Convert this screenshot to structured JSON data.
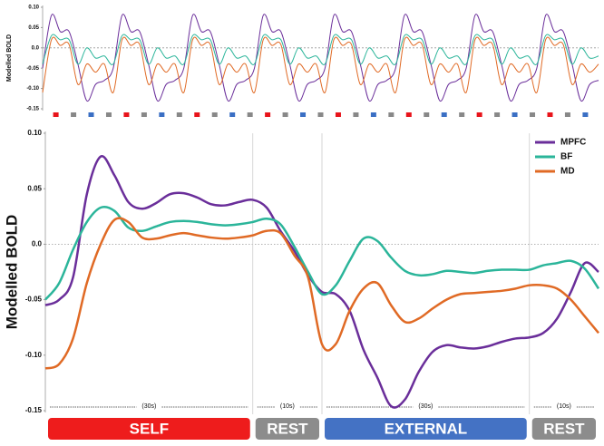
{
  "chart_data": [
    {
      "type": "line",
      "ylabel": "Modelled BOLD",
      "ylim": [
        -0.15,
        0.1
      ],
      "yticks": [
        -0.15,
        {
          "value": -0.1,
          "label": "-0.10"
        },
        -0.05,
        {
          "value": 0,
          "label": "0.0"
        },
        0.05,
        {
          "value": 0.1,
          "label": "0.10"
        }
      ],
      "xlim": [
        0,
        630
      ],
      "x": [
        0,
        10,
        20,
        30,
        40,
        50,
        60,
        70,
        80,
        90,
        100,
        110,
        120,
        130,
        140,
        150,
        160,
        170,
        180,
        190,
        200,
        210,
        220,
        230,
        240,
        250,
        260,
        270,
        280,
        290,
        300,
        310,
        320,
        330,
        340,
        350,
        360,
        370,
        380,
        390,
        400,
        410,
        420,
        430,
        440,
        450,
        460,
        470,
        480,
        490,
        500,
        510,
        520,
        530,
        540,
        550,
        560,
        570,
        580,
        590,
        600,
        610,
        620,
        630
      ],
      "series": [
        {
          "color": "#6a2e9a",
          "values": [
            -0.05,
            0.08,
            0.04,
            0.04,
            -0.04,
            -0.13,
            -0.09,
            -0.08,
            -0.05,
            0.08,
            0.04,
            0.04,
            -0.04,
            -0.13,
            -0.09,
            -0.08,
            -0.05,
            0.08,
            0.04,
            0.04,
            -0.04,
            -0.13,
            -0.09,
            -0.08,
            -0.05,
            0.08,
            0.04,
            0.04,
            -0.04,
            -0.13,
            -0.09,
            -0.08,
            -0.05,
            0.08,
            0.04,
            0.04,
            -0.04,
            -0.13,
            -0.09,
            -0.08,
            -0.05,
            0.08,
            0.04,
            0.04,
            -0.04,
            -0.13,
            -0.09,
            -0.08,
            -0.05,
            0.08,
            0.04,
            0.04,
            -0.04,
            -0.13,
            -0.09,
            -0.08,
            -0.05,
            0.08,
            0.04,
            0.04,
            -0.04,
            -0.13,
            -0.09,
            -0.08
          ]
        },
        {
          "color": "#2bb59a",
          "values": [
            -0.04,
            0.03,
            0.02,
            0.02,
            -0.04,
            0,
            -0.025,
            -0.02,
            -0.04,
            0.03,
            0.02,
            0.02,
            -0.04,
            0,
            -0.025,
            -0.02,
            -0.04,
            0.03,
            0.02,
            0.02,
            -0.04,
            0,
            -0.025,
            -0.02,
            -0.04,
            0.03,
            0.02,
            0.02,
            -0.04,
            0,
            -0.025,
            -0.02,
            -0.04,
            0.03,
            0.02,
            0.02,
            -0.04,
            0,
            -0.025,
            -0.02,
            -0.04,
            0.03,
            0.02,
            0.02,
            -0.04,
            0,
            -0.025,
            -0.02,
            -0.04,
            0.03,
            0.02,
            0.02,
            -0.04,
            0,
            -0.025,
            -0.02,
            -0.04,
            0.03,
            0.02,
            0.02,
            -0.04,
            0,
            -0.025,
            -0.02
          ]
        },
        {
          "color": "#e06a25",
          "values": [
            -0.11,
            0.02,
            0.006,
            0.008,
            -0.09,
            -0.04,
            -0.06,
            -0.04,
            -0.11,
            0.02,
            0.006,
            0.008,
            -0.09,
            -0.04,
            -0.06,
            -0.04,
            -0.11,
            0.02,
            0.006,
            0.008,
            -0.09,
            -0.04,
            -0.06,
            -0.04,
            -0.11,
            0.02,
            0.006,
            0.008,
            -0.09,
            -0.04,
            -0.06,
            -0.04,
            -0.11,
            0.02,
            0.006,
            0.008,
            -0.09,
            -0.04,
            -0.06,
            -0.04,
            -0.11,
            0.02,
            0.006,
            0.008,
            -0.09,
            -0.04,
            -0.06,
            -0.04,
            -0.11,
            0.02,
            0.006,
            0.008,
            -0.09,
            -0.04,
            -0.06,
            -0.04,
            -0.11,
            0.02,
            0.006,
            0.008,
            -0.09,
            -0.04,
            -0.06,
            -0.04
          ]
        }
      ],
      "markers": [
        "#e8141b",
        "#888888",
        "#3a6fc4",
        "#888888",
        "#e8141b",
        "#888888",
        "#3a6fc4",
        "#888888",
        "#e8141b",
        "#888888",
        "#3a6fc4",
        "#888888",
        "#e8141b",
        "#888888",
        "#3a6fc4",
        "#888888",
        "#e8141b",
        "#888888",
        "#3a6fc4",
        "#888888",
        "#e8141b",
        "#888888",
        "#3a6fc4",
        "#888888",
        "#e8141b",
        "#888888",
        "#3a6fc4",
        "#888888",
        "#e8141b",
        "#888888",
        "#3a6fc4"
      ]
    },
    {
      "type": "line",
      "ylabel": "Modelled BOLD",
      "ylim": [
        -0.15,
        0.1
      ],
      "yticks": [
        -0.15,
        {
          "value": -0.1,
          "label": "-0.10"
        },
        -0.05,
        {
          "value": 0,
          "label": "0.0"
        },
        0.05,
        {
          "value": 0.1,
          "label": "0.10"
        }
      ],
      "xlim": [
        0,
        80
      ],
      "x": [
        0,
        2,
        4,
        6,
        8,
        10,
        12,
        14,
        16,
        18,
        20,
        22,
        24,
        26,
        28,
        30,
        32,
        34,
        36,
        38,
        40,
        42,
        44,
        46,
        48,
        50,
        52,
        54,
        56,
        58,
        60,
        62,
        64,
        66,
        68,
        70,
        72,
        74,
        76,
        78,
        80
      ],
      "series": [
        {
          "name": "MPFC",
          "color": "#6a2e9a",
          "values": [
            -0.055,
            -0.05,
            -0.03,
            0.045,
            0.079,
            0.062,
            0.038,
            0.032,
            0.037,
            0.045,
            0.046,
            0.042,
            0.036,
            0.035,
            0.038,
            0.04,
            0.033,
            0.012,
            -0.006,
            -0.028,
            -0.043,
            -0.045,
            -0.06,
            -0.095,
            -0.12,
            -0.146,
            -0.14,
            -0.115,
            -0.097,
            -0.091,
            -0.093,
            -0.094,
            -0.092,
            -0.088,
            -0.085,
            -0.084,
            -0.08,
            -0.067,
            -0.043,
            -0.017,
            -0.025
          ]
        },
        {
          "name": "BF",
          "color": "#2bb59a",
          "values": [
            -0.05,
            -0.035,
            -0.005,
            0.02,
            0.033,
            0.03,
            0.015,
            0.012,
            0.016,
            0.02,
            0.021,
            0.02,
            0.018,
            0.017,
            0.018,
            0.02,
            0.023,
            0.018,
            -0.002,
            -0.025,
            -0.045,
            -0.037,
            -0.015,
            0.005,
            0.003,
            -0.012,
            -0.024,
            -0.028,
            -0.027,
            -0.024,
            -0.025,
            -0.026,
            -0.024,
            -0.023,
            -0.023,
            -0.023,
            -0.019,
            -0.017,
            -0.015,
            -0.022,
            -0.04
          ]
        },
        {
          "name": "MD",
          "color": "#e06a25",
          "values": [
            -0.112,
            -0.108,
            -0.085,
            -0.035,
            0,
            0.022,
            0.02,
            0.006,
            0.005,
            0.008,
            0.01,
            0.008,
            0.006,
            0.005,
            0.006,
            0.008,
            0.012,
            0.01,
            -0.01,
            -0.03,
            -0.09,
            -0.09,
            -0.06,
            -0.04,
            -0.035,
            -0.055,
            -0.07,
            -0.067,
            -0.058,
            -0.05,
            -0.045,
            -0.044,
            -0.043,
            -0.042,
            -0.04,
            -0.037,
            -0.037,
            -0.04,
            -0.05,
            -0.065,
            -0.08
          ]
        }
      ],
      "legend": "upper right",
      "blocks": [
        {
          "label": "SELF",
          "duration": "(30s)",
          "start": 0,
          "end": 30,
          "color": "#ee1c1c"
        },
        {
          "label": "REST",
          "duration": "(10s)",
          "start": 30,
          "end": 40,
          "color": "#8c8c8c"
        },
        {
          "label": "EXTERNAL",
          "duration": "(30s)",
          "start": 40,
          "end": 70,
          "color": "#4472c4"
        },
        {
          "label": "REST",
          "duration": "(10s)",
          "start": 70,
          "end": 80,
          "color": "#8c8c8c"
        }
      ]
    }
  ]
}
